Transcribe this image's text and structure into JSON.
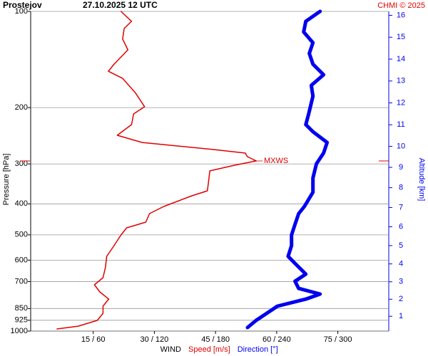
{
  "chart_data": {
    "type": "line",
    "title": "Prostejov",
    "subtitle": "27.10.2025 12 UTC",
    "credit": "CHMI © 2025",
    "ylabel": "Pressure [hPa]",
    "y2label": "Altitude [km]",
    "xlabel": "WIND",
    "ylog": true,
    "ylim": [
      1000,
      100
    ],
    "yticks": [
      100,
      200,
      300,
      400,
      500,
      600,
      700,
      850,
      925,
      1000
    ],
    "y2scale": "standard-atmosphere-km",
    "y2ticks": [
      1,
      2,
      3,
      4,
      5,
      6,
      7,
      8,
      9,
      10,
      11,
      12,
      13,
      14,
      15,
      16
    ],
    "y2color": "#0000ee",
    "xlim": [
      0,
      87.5
    ],
    "x2lim": [
      0,
      350
    ],
    "xticks": [
      {
        "value": 15,
        "label": "15 / 60"
      },
      {
        "value": 30,
        "label": "30 / 120"
      },
      {
        "value": 45,
        "label": "45 / 180"
      },
      {
        "value": 60,
        "label": "60 / 240"
      },
      {
        "value": 75,
        "label": "75 / 300"
      }
    ],
    "grid": true,
    "annotations": [
      {
        "text": "MXWS",
        "y": 293.6,
        "color": "#e00000"
      }
    ],
    "series": [
      {
        "name": "Speed [m/s]",
        "color": "#e00000",
        "pressure": [
          100,
          107.4,
          113.1,
          122.1,
          131.9,
          146.2,
          153.9,
          162,
          179.5,
          198.7,
          209.3,
          226,
          244.1,
          257,
          270.5,
          277.5,
          284.7,
          293.6,
          302.8,
          315.4,
          340.7,
          364.1,
          377.4,
          407.6,
          429,
          456.3,
          475.5,
          500.5,
          540.4,
          583.6,
          630.3,
          680.8,
          716.6,
          754.4,
          794.3,
          835.6,
          879.9,
          926.1,
          965.1,
          984.7
        ],
        "values": [
          21.8,
          24.4,
          22.6,
          22.2,
          23.5,
          20.1,
          18.7,
          22.2,
          25.3,
          27.6,
          24.9,
          24.4,
          20.9,
          27,
          44.5,
          52.3,
          52.8,
          55,
          49.7,
          43.6,
          43.3,
          43,
          39.2,
          32.3,
          28.8,
          27.9,
          23.2,
          21.8,
          20.1,
          18.3,
          18,
          17.4,
          15.3,
          16.6,
          18.8,
          17.4,
          17.4,
          16,
          11.3,
          6.1
        ]
      },
      {
        "name": "Direction [°]",
        "color": "#0000ee",
        "axis": "x2",
        "pressure": [
          100,
          107.4,
          116,
          125.3,
          135.3,
          146.2,
          157.8,
          170.4,
          184.1,
          209.3,
          226,
          237.9,
          257,
          277.5,
          299.7,
          332.1,
          367.9,
          407.6,
          429,
          463.4,
          500.5,
          540.4,
          583.6,
          614.3,
          663.5,
          698.5,
          735.4,
          765.9,
          794.3,
          835.6,
          879.9,
          926.1,
          974.7
        ],
        "values": [
          282.6,
          268.6,
          266.5,
          275.6,
          272,
          275.6,
          286,
          274,
          275.6,
          271.4,
          268.6,
          275.6,
          289.5,
          286,
          279,
          275.6,
          275.6,
          267.2,
          261.6,
          258,
          254.6,
          254.6,
          251.2,
          258,
          268.6,
          258,
          261.6,
          282.6,
          268.6,
          240.7,
          230.2,
          219.8,
          211.4
        ]
      }
    ]
  }
}
